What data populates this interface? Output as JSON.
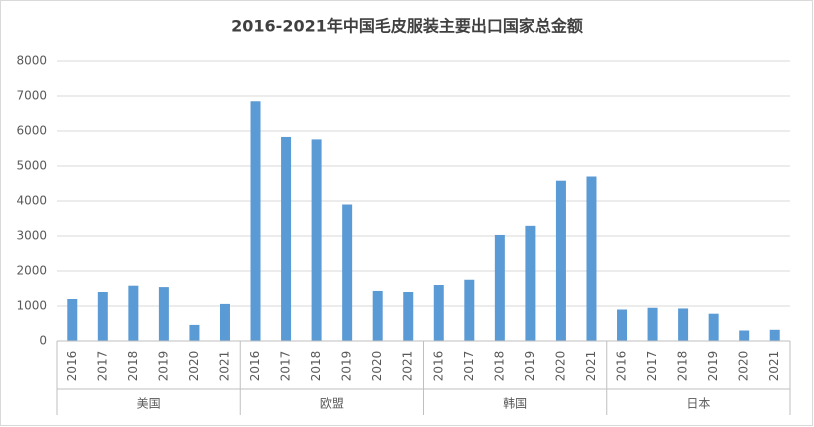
{
  "chart_data": {
    "type": "bar",
    "title": "2016-2021年中国毛皮服装主要出口国家总金额",
    "color": "#5b9bd5",
    "ylim": [
      0,
      8000
    ],
    "yticks": [
      0,
      1000,
      2000,
      3000,
      4000,
      5000,
      6000,
      7000,
      8000
    ],
    "grid": true,
    "groups": [
      {
        "name": "美国",
        "categories": [
          "2016",
          "2017",
          "2018",
          "2019",
          "2020",
          "2021"
        ],
        "values": [
          1200,
          1400,
          1580,
          1540,
          460,
          1060
        ]
      },
      {
        "name": "欧盟",
        "categories": [
          "2016",
          "2017",
          "2018",
          "2019",
          "2020",
          "2021"
        ],
        "values": [
          6850,
          5830,
          5760,
          3900,
          1430,
          1400
        ]
      },
      {
        "name": "韩国",
        "categories": [
          "2016",
          "2017",
          "2018",
          "2019",
          "2020",
          "2021"
        ],
        "values": [
          1600,
          1750,
          3030,
          3290,
          4580,
          4700
        ]
      },
      {
        "name": "日本",
        "categories": [
          "2016",
          "2017",
          "2018",
          "2019",
          "2020",
          "2021"
        ],
        "values": [
          900,
          950,
          930,
          780,
          300,
          320
        ]
      }
    ]
  }
}
